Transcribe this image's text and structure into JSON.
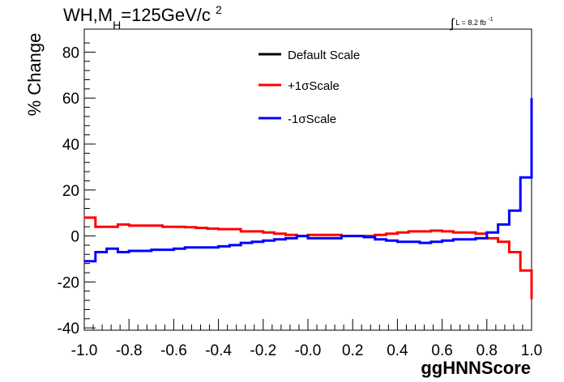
{
  "chart_data": {
    "type": "line",
    "title": {
      "main": "WH,M",
      "sub": "H",
      "rest": "=125GeV/c",
      "sup": "2"
    },
    "annotation": {
      "integral": "∫",
      "text": "L = 8.2 fb",
      "sup": "-1"
    },
    "xlabel": "ggHNNScore",
    "ylabel": "% Change",
    "xlim": [
      -1.0,
      1.0
    ],
    "ylim": [
      -41,
      90
    ],
    "xticks": [
      "-1.0",
      "-0.8",
      "-0.6",
      "-0.4",
      "-0.2",
      "-0.0",
      "0.2",
      "0.4",
      "0.6",
      "0.8",
      "1.0"
    ],
    "yticks": [
      "-40",
      "-20",
      "0",
      "20",
      "40",
      "60",
      "80"
    ],
    "bin_edges": [
      -1.0,
      -0.95,
      -0.9,
      -0.85,
      -0.8,
      -0.75,
      -0.7,
      -0.65,
      -0.6,
      -0.55,
      -0.5,
      -0.45,
      -0.4,
      -0.35,
      -0.3,
      -0.25,
      -0.2,
      -0.15,
      -0.1,
      -0.05,
      0.0,
      0.05,
      0.1,
      0.15,
      0.2,
      0.25,
      0.3,
      0.35,
      0.4,
      0.45,
      0.5,
      0.55,
      0.6,
      0.65,
      0.7,
      0.75,
      0.8,
      0.85,
      0.9,
      0.95,
      1.0
    ],
    "series": [
      {
        "name": "Default Scale",
        "color": "#000000",
        "values": []
      },
      {
        "name": "+1σScale",
        "color": "#ff0000",
        "values": [
          8,
          4,
          4,
          5,
          4.5,
          4.5,
          4.5,
          4,
          4,
          3.8,
          3.5,
          3.2,
          3,
          3,
          2,
          2,
          1.5,
          1,
          0.5,
          0,
          0.5,
          0.5,
          0.5,
          0,
          0,
          0,
          0.5,
          1,
          1.5,
          2,
          2,
          2.3,
          2,
          1.5,
          1.5,
          1,
          -1,
          -2.5,
          -7,
          -15
        ]
      },
      {
        "name": "-1σScale",
        "color": "#0000ff",
        "values": [
          -11,
          -7,
          -5.5,
          -7,
          -6.5,
          -6.5,
          -6,
          -6,
          -5.5,
          -5,
          -5,
          -5,
          -4.5,
          -4,
          -3,
          -2.5,
          -2,
          -1.5,
          -1,
          0,
          -1,
          -1,
          -1,
          0,
          0,
          -0.5,
          -1.5,
          -2,
          -2.5,
          -2.5,
          -3,
          -2.5,
          -2,
          -1.5,
          -1.5,
          -1,
          1.5,
          5,
          11,
          25.5
        ]
      }
    ],
    "tail": {
      "plus": -27.5,
      "minus": 60
    },
    "legend": "top-center"
  }
}
